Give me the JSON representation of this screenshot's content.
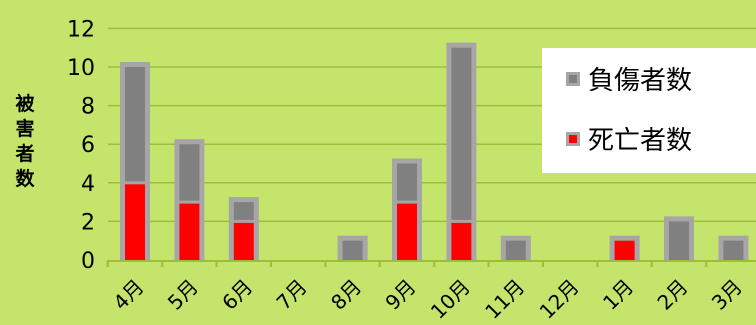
{
  "chart_data": {
    "type": "bar",
    "stacked": true,
    "title": "",
    "xlabel": "",
    "ylabel": "被害者数",
    "ylim": [
      0,
      12
    ],
    "yticks": [
      0,
      2,
      4,
      6,
      8,
      10,
      12
    ],
    "grid": true,
    "legend_position": "top-right",
    "categories": [
      "4月",
      "5月",
      "6月",
      "7月",
      "8月",
      "9月",
      "10月",
      "11月",
      "12月",
      "1月",
      "2月",
      "3月"
    ],
    "series": [
      {
        "name": "死亡者数",
        "color": "#ff0000",
        "values": [
          4,
          3,
          2,
          0,
          0,
          3,
          2,
          0,
          0,
          1,
          0,
          0
        ]
      },
      {
        "name": "負傷者数",
        "color": "#808080",
        "values": [
          6,
          3,
          1,
          0,
          1,
          2,
          9,
          1,
          0,
          0,
          2,
          1
        ]
      }
    ],
    "legend_order": [
      "負傷者数",
      "死亡者数"
    ],
    "colors": {
      "background": "#c5e46c",
      "grid": "#9cbf3a",
      "bar_border": "#a6a6a6"
    }
  }
}
